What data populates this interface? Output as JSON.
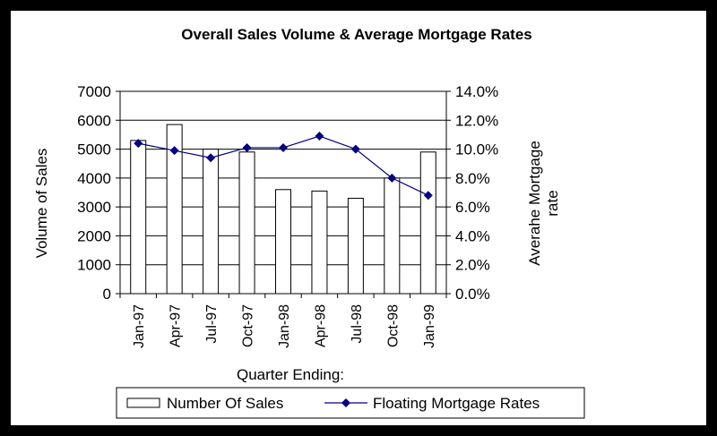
{
  "chart_data": {
    "type": "bar+line",
    "title": "Overall Sales Volume & Average Mortgage Rates",
    "xlabel": "Quarter Ending:",
    "ylabel_left": "Volume of Sales",
    "ylabel_right_lines": [
      "Averahe Mortgage",
      "rate"
    ],
    "categories": [
      "Jan-97",
      "Apr-97",
      "Jul-97",
      "Oct-97",
      "Jan-98",
      "Apr-98",
      "Jul-98",
      "Oct-98",
      "Jan-99"
    ],
    "series": [
      {
        "name": "Number Of Sales",
        "type": "bar",
        "axis": "left",
        "values": [
          5300,
          5850,
          5000,
          4900,
          3600,
          3550,
          3300,
          4000,
          4900
        ]
      },
      {
        "name": "Floating Mortgage Rates",
        "type": "line",
        "axis": "right",
        "values": [
          10.4,
          9.9,
          9.4,
          10.1,
          10.1,
          10.9,
          10.0,
          8.0,
          6.8
        ]
      }
    ],
    "left_axis": {
      "min": 0,
      "max": 7000,
      "step": 1000,
      "tick_labels": [
        "0",
        "1000",
        "2000",
        "3000",
        "4000",
        "5000",
        "6000",
        "7000"
      ]
    },
    "right_axis": {
      "min": 0,
      "max": 14,
      "step": 2,
      "tick_labels": [
        "0.0%",
        "2.0%",
        "4.0%",
        "6.0%",
        "8.0%",
        "10.0%",
        "12.0%",
        "14.0%"
      ]
    },
    "grid": true,
    "legend": {
      "position": "bottom"
    },
    "colors": {
      "bar_fill": "#ffffff",
      "bar_stroke": "#000000",
      "line": "#000080",
      "grid": "#000000"
    }
  }
}
